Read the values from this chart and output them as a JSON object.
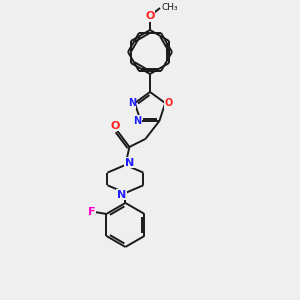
{
  "background_color": "#efefef",
  "bond_color": "#1a1a1a",
  "atom_colors": {
    "N": "#2020ff",
    "O": "#ff2020",
    "F": "#ff00cc",
    "C": "#1a1a1a"
  },
  "figsize": [
    3.0,
    3.0
  ],
  "dpi": 100,
  "line_width": 1.4
}
